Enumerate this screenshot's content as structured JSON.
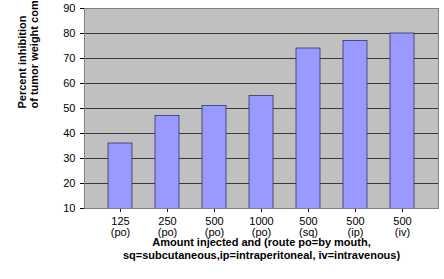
{
  "chart_data": {
    "type": "bar",
    "x_label": "Amount injected and (route po=by mouth,\nsq=subcutaneous,ip=intraperitoneal, iv=intravenous)",
    "y_label": "Percent inhibition\nof tumor weight compared to controls",
    "categories": [
      "125\n(po)",
      "250\n(po)",
      "500\n(po)",
      "1000\n(po)",
      "500\n(sq)",
      "500\n(ip)",
      "500\n(iv)"
    ],
    "values": [
      36,
      47,
      51,
      55,
      74,
      77,
      80
    ],
    "color": "#9999ff",
    "ylim": [
      10,
      90
    ],
    "yticks": [
      10,
      20,
      30,
      40,
      50,
      60,
      70,
      80,
      90
    ],
    "grid": true
  }
}
